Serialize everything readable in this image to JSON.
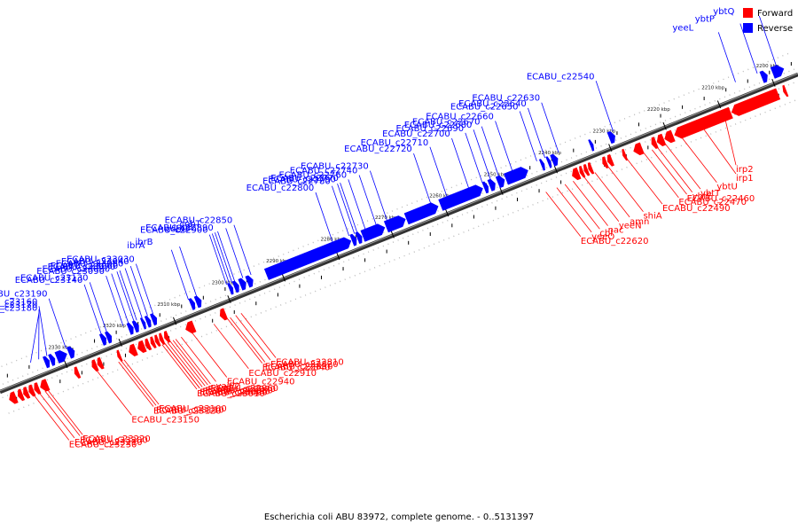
{
  "caption": "Escherichia coli ABU 83972, complete genome. - 0..5131397",
  "legend": [
    {
      "label": "Forward",
      "color": "#ff0000"
    },
    {
      "label": "Reverse",
      "color": "#0000ff"
    }
  ],
  "colors": {
    "forward": "#ff0000",
    "reverse": "#0000ff",
    "backbone": "#333333",
    "tick": "#000000"
  },
  "scale_ticks": [
    {
      "label": "2200 kbp",
      "kb": 2200
    },
    {
      "label": "2210 kbp",
      "kb": 2210
    },
    {
      "label": "2220 kbp",
      "kb": 2220
    },
    {
      "label": "2230 kbp",
      "kb": 2230
    },
    {
      "label": "2240 kbp",
      "kb": 2240
    },
    {
      "label": "2250 kbp",
      "kb": 2250
    },
    {
      "label": "2260 kbp",
      "kb": 2260
    },
    {
      "label": "2270 kbp",
      "kb": 2270
    },
    {
      "label": "2280 kbp",
      "kb": 2280
    },
    {
      "label": "2290 kbp",
      "kb": 2290
    },
    {
      "label": "2300 kbp",
      "kb": 2300
    },
    {
      "label": "2310 kbp",
      "kb": 2310
    },
    {
      "label": "2320 kbp",
      "kb": 2320
    },
    {
      "label": "2330 kbp",
      "kb": 2330
    }
  ],
  "reverse_labels": [
    {
      "text": "ybtQ",
      "kb": 2198.5
    },
    {
      "text": "ybtP",
      "kb": 2202
    },
    {
      "text": "yeeL",
      "kb": 2206
    },
    {
      "text": "ECABU_c22540",
      "kb": 2228.5
    },
    {
      "text": "ECABU_c22630",
      "kb": 2238.5
    },
    {
      "text": "ECABU_c22640",
      "kb": 2241
    },
    {
      "text": "ECABU_c22650",
      "kb": 2242.5
    },
    {
      "text": "ECABU_c22660",
      "kb": 2247
    },
    {
      "text": "ECABU_c22670",
      "kb": 2249.5
    },
    {
      "text": "ECABU_c22680",
      "kb": 2251
    },
    {
      "text": "ECABU_c22690",
      "kb": 2252.5
    },
    {
      "text": "ECABU_c22700",
      "kb": 2255
    },
    {
      "text": "ECABU_c22710",
      "kb": 2259
    },
    {
      "text": "ECABU_c22720",
      "kb": 2262
    },
    {
      "text": "ECABU_c22730",
      "kb": 2270
    },
    {
      "text": "ECABU_c22740",
      "kb": 2272
    },
    {
      "text": "ECABU_c22760",
      "kb": 2274
    },
    {
      "text": "ECABU_c22770",
      "kb": 2275.5
    },
    {
      "text": "ECABU_c22780",
      "kb": 2277
    },
    {
      "text": "ECABU_c22790",
      "kb": 2276
    },
    {
      "text": "ECABU_c22800",
      "kb": 2280
    },
    {
      "text": "ECABU_c22850",
      "kb": 2295
    },
    {
      "text": "cobT",
      "kb": 2296.5
    },
    {
      "text": "cobS",
      "kb": 2298
    },
    {
      "text": "cobU",
      "kb": 2299
    },
    {
      "text": "ECABU_c22890",
      "kb": 2298.5
    },
    {
      "text": "ECABU_c22900",
      "kb": 2299.5
    },
    {
      "text": "ibrB",
      "kb": 2305
    },
    {
      "text": "ibrA",
      "kb": 2306.5
    },
    {
      "text": "ECABU_c23030",
      "kb": 2313
    },
    {
      "text": "ECABU_c23040",
      "kb": 2314
    },
    {
      "text": "ECABU_c23050",
      "kb": 2315
    },
    {
      "text": "ECABU_c23060",
      "kb": 2316
    },
    {
      "text": "ECABU_c23070",
      "kb": 2316.5
    },
    {
      "text": "ECABU_c23080",
      "kb": 2317.5
    },
    {
      "text": "ECABU_c23090",
      "kb": 2318.5
    },
    {
      "text": "ECABU_c23130",
      "kb": 2321.5
    },
    {
      "text": "ECABU_c23140",
      "kb": 2322.5
    },
    {
      "text": "ECABU_c23160",
      "kb": 2332.5
    },
    {
      "text": "ECABU_c23170",
      "kb": 2334
    },
    {
      "text": "ECABU_c23180",
      "kb": 2335.5
    },
    {
      "text": "ECABU_c23190",
      "kb": 2329
    }
  ],
  "forward_labels": [
    {
      "text": "irp2",
      "kb": 2210
    },
    {
      "text": "irp1",
      "kb": 2214
    },
    {
      "text": "ybtU",
      "kb": 2218
    },
    {
      "text": "ybtT",
      "kb": 2221
    },
    {
      "text": "ybtE",
      "kb": 2222.5
    },
    {
      "text": "ECABU_c22460",
      "kb": 2223.5
    },
    {
      "text": "ECABU_c22470",
      "kb": 2225
    },
    {
      "text": "ECABU_c22490",
      "kb": 2228
    },
    {
      "text": "shiA",
      "kb": 2231.5
    },
    {
      "text": "amn",
      "kb": 2234
    },
    {
      "text": "yeeN",
      "kb": 2236
    },
    {
      "text": "nac",
      "kb": 2238
    },
    {
      "text": "cbl",
      "kb": 2239.5
    },
    {
      "text": "yeeO",
      "kb": 2241
    },
    {
      "text": "ECABU_c22620",
      "kb": 2243
    },
    {
      "text": "ECABU_c22810",
      "kb": 2299
    },
    {
      "text": "ECABU_c22820",
      "kb": 2300
    },
    {
      "text": "ECABU_c22830",
      "kb": 2301
    },
    {
      "text": "ECABU_c22840",
      "kb": 2301.5
    },
    {
      "text": "ECABU_c22910",
      "kb": 2304
    },
    {
      "text": "ECABU_c22940",
      "kb": 2308
    },
    {
      "text": "yaiP2",
      "kb": 2310
    },
    {
      "text": "ECABU_c22960",
      "kb": 2311
    },
    {
      "text": "ECABU_c22970",
      "kb": 2311.5
    },
    {
      "text": "ECABU_c22980",
      "kb": 2312
    },
    {
      "text": "ECABU_c22990",
      "kb": 2312.5
    },
    {
      "text": "ECABU_c23000",
      "kb": 2313
    },
    {
      "text": "ECABU_c23010",
      "kb": 2313.5
    },
    {
      "text": "ECABU_c23020",
      "kb": 2313
    },
    {
      "text": "ECABU_c23100",
      "kb": 2320.5
    },
    {
      "text": "ECABU_c23110",
      "kb": 2321
    },
    {
      "text": "ECABU_c23120",
      "kb": 2321.5
    },
    {
      "text": "ECABU_c23150",
      "kb": 2325.5
    },
    {
      "text": "ECABU_c23220",
      "kb": 2334.5
    },
    {
      "text": "ECABU_c23200",
      "kb": 2335
    },
    {
      "text": "ECABU_c23210",
      "kb": 2336
    },
    {
      "text": "ECABU_c23230",
      "kb": 2337
    }
  ],
  "reverse_genes": [
    {
      "start": 2197.5,
      "end": 2199.5
    },
    {
      "start": 2200.5,
      "end": 2201.5
    },
    {
      "start": 2228.5,
      "end": 2229.5
    },
    {
      "start": 2232.5,
      "end": 2233
    },
    {
      "start": 2239,
      "end": 2240
    },
    {
      "start": 2240.3,
      "end": 2240.8
    },
    {
      "start": 2241.5,
      "end": 2242
    },
    {
      "start": 2244.5,
      "end": 2248.5
    },
    {
      "start": 2248.8,
      "end": 2250
    },
    {
      "start": 2250.5,
      "end": 2251.5
    },
    {
      "start": 2251.8,
      "end": 2252.5
    },
    {
      "start": 2252.8,
      "end": 2260.5
    },
    {
      "start": 2261,
      "end": 2266.8
    },
    {
      "start": 2267,
      "end": 2270.5
    },
    {
      "start": 2270.8,
      "end": 2274.8
    },
    {
      "start": 2275,
      "end": 2275.8
    },
    {
      "start": 2276,
      "end": 2276.8
    },
    {
      "start": 2277,
      "end": 2292.5
    },
    {
      "start": 2295,
      "end": 2296
    },
    {
      "start": 2296.3,
      "end": 2297.3
    },
    {
      "start": 2297.6,
      "end": 2298.4
    },
    {
      "start": 2298.7,
      "end": 2299.3
    },
    {
      "start": 2304.5,
      "end": 2305.4
    },
    {
      "start": 2305.7,
      "end": 2306.4
    },
    {
      "start": 2312.7,
      "end": 2313.5
    },
    {
      "start": 2313.8,
      "end": 2314.5
    },
    {
      "start": 2314.8,
      "end": 2315.3
    },
    {
      "start": 2316,
      "end": 2316.8
    },
    {
      "start": 2317,
      "end": 2317.8
    },
    {
      "start": 2321,
      "end": 2321.8
    },
    {
      "start": 2322,
      "end": 2322.8
    },
    {
      "start": 2327.8,
      "end": 2328.8
    },
    {
      "start": 2329.2,
      "end": 2331
    },
    {
      "start": 2331.4,
      "end": 2332.2
    },
    {
      "start": 2332.4,
      "end": 2333.2
    }
  ],
  "forward_genes": [
    {
      "start": 2198.5,
      "end": 2199
    },
    {
      "start": 2200,
      "end": 2208.5
    },
    {
      "start": 2208.7,
      "end": 2219
    },
    {
      "start": 2219.3,
      "end": 2220.8
    },
    {
      "start": 2221,
      "end": 2222.2
    },
    {
      "start": 2222.4,
      "end": 2223.2
    },
    {
      "start": 2225,
      "end": 2226.5
    },
    {
      "start": 2228,
      "end": 2228.5
    },
    {
      "start": 2230.5,
      "end": 2231.3
    },
    {
      "start": 2231.5,
      "end": 2232.2
    },
    {
      "start": 2234.2,
      "end": 2234.8
    },
    {
      "start": 2235,
      "end": 2235.6
    },
    {
      "start": 2235.8,
      "end": 2236.4
    },
    {
      "start": 2236.6,
      "end": 2237.8
    },
    {
      "start": 2301.5,
      "end": 2302.5
    },
    {
      "start": 2307.3,
      "end": 2308.8
    },
    {
      "start": 2312,
      "end": 2312.7
    },
    {
      "start": 2313,
      "end": 2313.6
    },
    {
      "start": 2313.8,
      "end": 2314.4
    },
    {
      "start": 2314.6,
      "end": 2315.2
    },
    {
      "start": 2315.5,
      "end": 2316.2
    },
    {
      "start": 2316.4,
      "end": 2317.6
    },
    {
      "start": 2318,
      "end": 2319.2
    },
    {
      "start": 2320.8,
      "end": 2321.3
    },
    {
      "start": 2324.2,
      "end": 2325
    },
    {
      "start": 2325.2,
      "end": 2326
    },
    {
      "start": 2328.5,
      "end": 2329.2
    },
    {
      "start": 2334.2,
      "end": 2335.5
    },
    {
      "start": 2335.8,
      "end": 2336.6
    },
    {
      "start": 2336.8,
      "end": 2337.6
    },
    {
      "start": 2337.8,
      "end": 2338.6
    },
    {
      "start": 2338.8,
      "end": 2339.6
    },
    {
      "start": 2340,
      "end": 2341.2
    }
  ]
}
